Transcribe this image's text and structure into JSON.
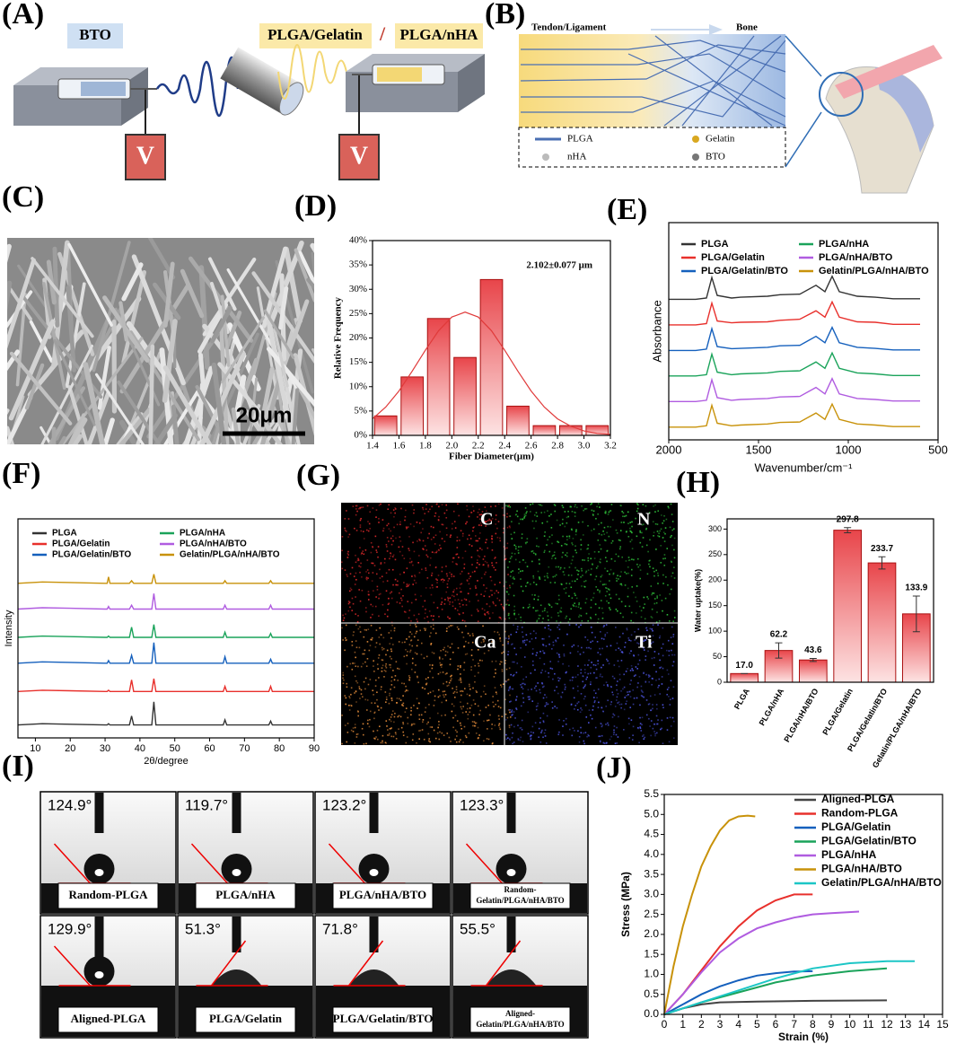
{
  "panel_labels": [
    "(A)",
    "(B)",
    "(C)",
    "(D)",
    "(E)",
    "(F)",
    "(G)",
    "(H)",
    "(I)",
    "(J)"
  ],
  "schematic_a": {
    "bto": "BTO",
    "plga_gelatin": "PLGA/Gelatin",
    "slash": "/",
    "plga_nha": "PLGA/nHA",
    "voltage": [
      "V",
      "V"
    ]
  },
  "schematic_b": {
    "tendon": "Tendon/Ligament",
    "bone": "Bone",
    "legend": [
      "PLGA",
      "Gelatin",
      "nHA",
      "BTO"
    ]
  },
  "sem_c": {
    "scale_bar": "20μm"
  },
  "eds_g": {
    "elements": [
      "C",
      "N",
      "Ca",
      "Ti"
    ]
  },
  "contact_angle_i": {
    "cells": [
      {
        "angle": "124.9°",
        "sample": [
          "Random-PLGA"
        ]
      },
      {
        "angle": "119.7°",
        "sample": [
          "PLGA/nHA"
        ]
      },
      {
        "angle": "123.2°",
        "sample": [
          "PLGA/nHA/BTO"
        ]
      },
      {
        "angle": "123.3°",
        "sample": [
          "Random-",
          "Gelatin/PLGA/nHA/BTO"
        ]
      },
      {
        "angle": "129.9°",
        "sample": [
          "Aligned-PLGA"
        ]
      },
      {
        "angle": "51.3°",
        "sample": [
          "PLGA/Gelatin"
        ]
      },
      {
        "angle": "71.8°",
        "sample": [
          "PLGA/Gelatin/BTO"
        ]
      },
      {
        "angle": "55.5°",
        "sample": [
          "Aligned-",
          "Gelatin/PLGA/nHA/BTO"
        ]
      }
    ]
  },
  "chart_data": [
    {
      "type": "histogram",
      "xlabel": "Fiber Diameter(μm)",
      "ylabel": "Relative Frequency",
      "annotation": "2.102±0.077 μm",
      "bins": [
        1.4,
        1.6,
        1.8,
        2.0,
        2.2,
        2.4,
        2.6,
        2.8,
        3.0,
        3.2
      ],
      "values": [
        4,
        12,
        24,
        16,
        32,
        6,
        2,
        2,
        2
      ],
      "color": "#e03a3a",
      "fit": {
        "color": "#e03a3a",
        "x": [
          1.4,
          1.5,
          1.6,
          1.7,
          1.8,
          1.9,
          2.0,
          2.1,
          2.2,
          2.3,
          2.4,
          2.5,
          2.6,
          2.7,
          2.8,
          2.9,
          3.0,
          3.1,
          3.2
        ],
        "values": [
          3.4,
          5.8,
          9.1,
          13.2,
          17.5,
          21.5,
          24.3,
          25.3,
          24.3,
          21.5,
          17.5,
          13.2,
          9.1,
          5.8,
          3.4,
          1.9,
          0.9,
          0.4,
          0.2
        ]
      },
      "xlim": [
        1.4,
        3.2
      ],
      "xticks": [
        1.4,
        1.6,
        1.8,
        {
          "value": 2,
          "label": "2.0"
        },
        2.2,
        2.4,
        2.6,
        2.8,
        {
          "value": 3,
          "label": "3.0"
        },
        3.2
      ],
      "ylim": [
        0,
        40
      ],
      "yticks": [
        {
          "value": 0,
          "label": "0%"
        },
        {
          "value": 5,
          "label": "5%"
        },
        {
          "value": 10,
          "label": "10%"
        },
        {
          "value": 15,
          "label": "15%"
        },
        {
          "value": 20,
          "label": "20%"
        },
        {
          "value": 25,
          "label": "25%"
        },
        {
          "value": 30,
          "label": "30%"
        },
        {
          "value": 35,
          "label": "35%"
        },
        {
          "value": 40,
          "label": "40%"
        }
      ]
    },
    {
      "type": "line",
      "xlabel": "Wavenumber/cm⁻¹",
      "ylabel": "Absorbance",
      "x": [
        2000,
        1850,
        1790,
        1760,
        1730,
        1650,
        1600,
        1450,
        1380,
        1270,
        1180,
        1130,
        1090,
        1050,
        950,
        850,
        750,
        600
      ],
      "xlim": [
        2000,
        500
      ],
      "xticks": [
        2000,
        1500,
        1000,
        500
      ],
      "ylim": [
        0,
        8.5
      ],
      "series": [
        {
          "name": "PLGA",
          "color": "#333333",
          "values": [
            5.5,
            5.5,
            5.55,
            6.35,
            5.65,
            5.55,
            5.58,
            5.62,
            5.68,
            5.7,
            6.05,
            5.8,
            6.4,
            5.8,
            5.62,
            5.58,
            5.52,
            5.52
          ]
        },
        {
          "name": "PLGA/Gelatin",
          "color": "#e8302c",
          "values": [
            4.5,
            4.5,
            4.55,
            5.35,
            4.65,
            4.58,
            4.6,
            4.62,
            4.68,
            4.72,
            5.05,
            4.8,
            5.4,
            4.8,
            4.62,
            4.6,
            4.52,
            4.52
          ]
        },
        {
          "name": "PLGA/Gelatin/BTO",
          "color": "#1560bd",
          "values": [
            3.5,
            3.5,
            3.55,
            4.35,
            3.65,
            3.57,
            3.58,
            3.62,
            3.68,
            3.7,
            4.05,
            3.8,
            4.4,
            3.8,
            3.62,
            3.58,
            3.52,
            3.52
          ]
        },
        {
          "name": "PLGA/nHA",
          "color": "#1aa35a",
          "values": [
            2.5,
            2.5,
            2.55,
            3.35,
            2.65,
            2.55,
            2.58,
            2.62,
            2.68,
            2.7,
            3.05,
            2.8,
            3.4,
            2.8,
            2.62,
            2.58,
            2.52,
            2.52
          ]
        },
        {
          "name": "PLGA/nHA/BTO",
          "color": "#b05ce0",
          "values": [
            1.5,
            1.5,
            1.55,
            2.35,
            1.65,
            1.55,
            1.58,
            1.62,
            1.68,
            1.7,
            2.05,
            1.8,
            2.4,
            1.8,
            1.62,
            1.58,
            1.52,
            1.52
          ]
        },
        {
          "name": "Gelatin/PLGA/nHA/BTO",
          "color": "#c8920a",
          "values": [
            0.5,
            0.5,
            0.55,
            1.35,
            0.65,
            0.55,
            0.58,
            0.62,
            0.68,
            0.7,
            1.05,
            0.8,
            1.4,
            0.8,
            0.62,
            0.58,
            0.52,
            0.52
          ]
        }
      ]
    },
    {
      "type": "line",
      "xlabel": "2θ/degree",
      "ylabel": "Intensity",
      "x": [
        5,
        12,
        20,
        30,
        30.6,
        31,
        31.4,
        37,
        37.6,
        38.2,
        43.4,
        44,
        44.6,
        55,
        63.9,
        64.4,
        64.9,
        77,
        77.5,
        78,
        90
      ],
      "xlim": [
        5,
        90
      ],
      "xticks": [
        10,
        20,
        30,
        40,
        50,
        60,
        70,
        80,
        90
      ],
      "ylim": [
        -0.5,
        8
      ],
      "series": [
        {
          "name": "PLGA",
          "color": "#333333",
          "values": [
            0,
            0.05,
            0.03,
            0,
            0,
            0.05,
            0,
            0,
            0.35,
            0,
            0,
            0.9,
            0,
            0,
            0,
            0.2,
            0,
            0,
            0.15,
            0,
            0
          ]
        },
        {
          "name": "PLGA/Gelatin",
          "color": "#e8302c",
          "values": [
            1.3,
            1.35,
            1.33,
            1.3,
            1.3,
            1.35,
            1.3,
            1.3,
            1.75,
            1.3,
            1.3,
            1.8,
            1.3,
            1.3,
            1.3,
            1.5,
            1.3,
            1.3,
            1.5,
            1.3,
            1.3
          ]
        },
        {
          "name": "PLGA/Gelatin/BTO",
          "color": "#1560bd",
          "values": [
            2.4,
            2.45,
            2.43,
            2.4,
            2.4,
            2.5,
            2.4,
            2.4,
            2.7,
            2.4,
            2.4,
            3.2,
            2.4,
            2.4,
            2.4,
            2.65,
            2.4,
            2.4,
            2.55,
            2.4,
            2.4
          ]
        },
        {
          "name": "PLGA/nHA",
          "color": "#1aa35a",
          "values": [
            3.4,
            3.45,
            3.43,
            3.4,
            3.4,
            3.45,
            3.4,
            3.4,
            3.8,
            3.4,
            3.4,
            3.9,
            3.4,
            3.4,
            3.4,
            3.6,
            3.4,
            3.4,
            3.55,
            3.4,
            3.4
          ]
        },
        {
          "name": "PLGA/nHA/BTO",
          "color": "#b05ce0",
          "values": [
            4.5,
            4.55,
            4.53,
            4.5,
            4.5,
            4.6,
            4.5,
            4.5,
            4.65,
            4.5,
            4.5,
            5.1,
            4.5,
            4.5,
            4.5,
            4.65,
            4.5,
            4.5,
            4.65,
            4.5,
            4.5
          ]
        },
        {
          "name": "Gelatin/PLGA/nHA/BTO",
          "color": "#c8920a",
          "values": [
            5.5,
            5.55,
            5.53,
            5.5,
            5.5,
            5.75,
            5.5,
            5.5,
            5.6,
            5.5,
            5.5,
            5.85,
            5.5,
            5.5,
            5.5,
            5.6,
            5.5,
            5.5,
            5.6,
            5.5,
            5.5
          ]
        }
      ]
    },
    {
      "type": "bar",
      "ylabel": "Water uptake(%)",
      "color": "#e03a3a",
      "categories": [
        "PLGA",
        "PLGA/nHA",
        "PLGA/nHA/BTO",
        "PLGA/Gelatin",
        "PLGA/Gelatin/BTO",
        "Gelatin/PLGA/nHA/BTO"
      ],
      "values": [
        17.0,
        62.2,
        43.6,
        297.8,
        233.7,
        133.9
      ],
      "value_labels": [
        "17.0",
        "62.2",
        "43.6",
        "297.8",
        "233.7",
        "133.9"
      ],
      "errors": [
        0,
        15,
        3,
        5,
        12,
        35
      ],
      "ylim": [
        0,
        320
      ],
      "yticks": [
        0,
        50,
        100,
        150,
        200,
        250,
        300
      ]
    },
    {
      "type": "xyline",
      "xlabel": "Strain (%)",
      "ylabel": "Stress (MPa)",
      "xlim": [
        0,
        15
      ],
      "xticks": [
        0,
        1,
        2,
        3,
        4,
        5,
        6,
        7,
        8,
        9,
        10,
        11,
        12,
        13,
        14,
        15
      ],
      "ylim": [
        0,
        5.5
      ],
      "yticks": [
        {
          "value": 0,
          "label": "0.0"
        },
        0.5,
        {
          "value": 1,
          "label": "1.0"
        },
        1.5,
        {
          "value": 2,
          "label": "2.0"
        },
        2.5,
        {
          "value": 3,
          "label": "3.0"
        },
        3.5,
        {
          "value": 4,
          "label": "4.0"
        },
        4.5,
        {
          "value": 5,
          "label": "5.0"
        },
        5.5
      ],
      "series": [
        {
          "name": "Aligned-PLGA",
          "color": "#444444",
          "x": [
            0,
            1,
            2,
            3,
            5,
            8,
            12
          ],
          "values": [
            0,
            0.15,
            0.25,
            0.3,
            0.32,
            0.34,
            0.35
          ]
        },
        {
          "name": "Random-PLGA",
          "color": "#e8302c",
          "x": [
            0,
            1,
            2,
            3,
            4,
            5,
            6,
            7,
            8
          ],
          "values": [
            0,
            0.5,
            1.1,
            1.7,
            2.2,
            2.6,
            2.85,
            3.0,
            3.0
          ]
        },
        {
          "name": "PLGA/Gelatin",
          "color": "#1560bd",
          "x": [
            0,
            1,
            2,
            3,
            4,
            5,
            6,
            7,
            8
          ],
          "values": [
            0,
            0.25,
            0.5,
            0.7,
            0.85,
            0.97,
            1.03,
            1.07,
            1.08
          ]
        },
        {
          "name": "PLGA/Gelatin/BTO",
          "color": "#1aa35a",
          "x": [
            0,
            1,
            2,
            4,
            6,
            8,
            10,
            12
          ],
          "values": [
            0,
            0.15,
            0.3,
            0.55,
            0.8,
            0.97,
            1.08,
            1.15
          ]
        },
        {
          "name": "PLGA/nHA",
          "color": "#b05ce0",
          "x": [
            0,
            1,
            2,
            3,
            4,
            5,
            6,
            7,
            8,
            9,
            10.5
          ],
          "values": [
            0,
            0.5,
            1.05,
            1.55,
            1.9,
            2.15,
            2.3,
            2.42,
            2.5,
            2.53,
            2.57
          ]
        },
        {
          "name": "PLGA/nHA/BTO",
          "color": "#c8920a",
          "x": [
            0,
            0.5,
            1,
            1.5,
            2,
            2.5,
            3,
            3.5,
            4,
            4.5,
            4.9
          ],
          "values": [
            0,
            1.2,
            2.2,
            3.0,
            3.7,
            4.2,
            4.6,
            4.85,
            4.95,
            4.97,
            4.95
          ]
        },
        {
          "name": "Gelatin/PLGA/nHA/BTO",
          "color": "#1cc6c6",
          "x": [
            0,
            1,
            2,
            4,
            6,
            8,
            10,
            12,
            13.5
          ],
          "values": [
            0,
            0.15,
            0.3,
            0.6,
            0.9,
            1.15,
            1.28,
            1.33,
            1.33
          ]
        }
      ]
    }
  ]
}
